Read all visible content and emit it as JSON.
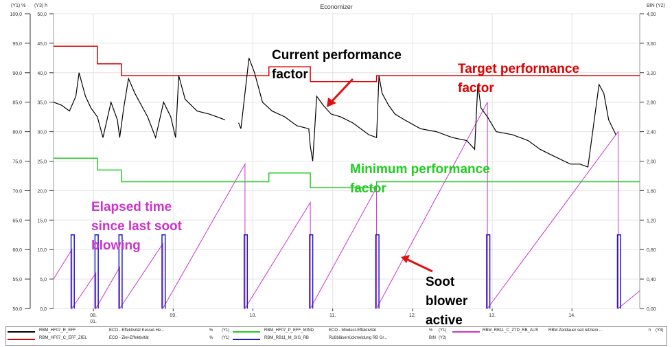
{
  "window": {
    "title": "Economizer"
  },
  "axes": {
    "y1_unit": "(Y1) %",
    "y3_unit": "(Y3) h",
    "y2_unit": "BIN (Y2)",
    "y1_ticks": [
      "100,0",
      "95,0",
      "90,0",
      "85,0",
      "80,0",
      "75,0",
      "70,0",
      "65,0",
      "60,0",
      "55,0",
      "50,0"
    ],
    "y3_ticks": [
      "50,0",
      "45,0",
      "40,0",
      "35,0",
      "30,0",
      "25,0",
      "20,0",
      "15,0",
      "10,0",
      "5,0",
      "0,0"
    ],
    "y2_ticks": [
      "4,00",
      "3,60",
      "3,20",
      "2,80",
      "2,40",
      "2,00",
      "1,60",
      "1,20",
      "0,80",
      "0,40",
      "0,00"
    ],
    "y1_range": [
      50,
      100
    ],
    "x_ticks": [
      {
        "label": "08.",
        "sub": "01.",
        "day": 8
      },
      {
        "label": "09.",
        "sub": "",
        "day": 9
      },
      {
        "label": "10.",
        "sub": "",
        "day": 10
      },
      {
        "label": "11.",
        "sub": "",
        "day": 11
      },
      {
        "label": "12.",
        "sub": "",
        "day": 12
      },
      {
        "label": "13.",
        "sub": "",
        "day": 13
      },
      {
        "label": "14.",
        "sub": "",
        "day": 14
      }
    ],
    "x_range": [
      7.5,
      14.85
    ]
  },
  "annotations": {
    "current": [
      "Current performance",
      "factor"
    ],
    "target": [
      "Target performance",
      "factor"
    ],
    "minimum": [
      "Minimum performance",
      "factor"
    ],
    "elapsed": [
      "Elapsed time",
      "since last soot",
      "blowing"
    ],
    "soot": [
      "Soot",
      "blower",
      "active"
    ]
  },
  "colors": {
    "current": "#000000",
    "target": "#dd0000",
    "minimum": "#22cc22",
    "elapsed": "#cc33cc",
    "soot": "#1a1acc",
    "arrow": "#e01010"
  },
  "legend": [
    {
      "tag": "RBM_HF07_R_EFF",
      "desc": "ECO - Effektivität Kessel-He...",
      "unit": "%",
      "axis": "(Y1)",
      "color": "#000000"
    },
    {
      "tag": "RBM_HF07_P_EFF_MIND",
      "desc": "ECO - Mindest-Effektivität",
      "unit": "%",
      "axis": "(Y1)",
      "color": "#22cc22"
    },
    {
      "tag": "RBM_RB11_C_ZTD_RB_AUS",
      "desc": "RBM Zeitdauer seit letztem ...",
      "unit": "h",
      "axis": "(Y3)",
      "color": "#cc33cc"
    },
    {
      "tag": "RBM_HF07_C_EFF_ZIEL",
      "desc": "ECO - Ziel-Effektivität",
      "unit": "%",
      "axis": "(Y1)",
      "color": "#dd0000"
    },
    {
      "tag": "RBM_RB11_M_SIG_RB",
      "desc": "Rußbläserrückmeldung RB Gr...",
      "unit": "BIN",
      "axis": "(Y2)",
      "color": "#1a1acc"
    }
  ],
  "chart_data": {
    "type": "line",
    "title": "Economizer",
    "x_unit": "day of month (January)",
    "ylim": [
      50,
      100
    ],
    "series": [
      {
        "name": "RBM_HF07_R_EFF",
        "axis": "Y1",
        "type": "line",
        "x": [
          7.5,
          7.6,
          7.7,
          7.78,
          7.82,
          7.86,
          7.9,
          7.97,
          8.05,
          8.12,
          8.22,
          8.3,
          8.33,
          8.38,
          8.44,
          8.52,
          8.6,
          8.68,
          8.78,
          8.88,
          8.97,
          9.03,
          9.07,
          9.15,
          9.3,
          9.45,
          9.55,
          9.65,
          9.78,
          9.82,
          9.85,
          9.95,
          10.02,
          10.12,
          10.24,
          10.4,
          10.55,
          10.7,
          10.72,
          10.75,
          10.8,
          10.88,
          10.98,
          11.1,
          11.25,
          11.45,
          11.55,
          11.58,
          11.62,
          11.7,
          11.78,
          11.9,
          12.1,
          12.3,
          12.5,
          12.68,
          12.78,
          12.82,
          12.86,
          12.94,
          13.05,
          13.25,
          13.45,
          13.6,
          13.75,
          13.98,
          14.1,
          14.2,
          14.34,
          14.4,
          14.46,
          14.55,
          14.62,
          14.68,
          14.74
        ],
        "y": [
          85,
          84.5,
          83.5,
          86,
          90,
          88,
          86,
          84,
          82.5,
          79,
          85,
          82,
          79,
          84,
          89,
          86.5,
          84.5,
          82.5,
          79,
          85,
          82.5,
          79,
          89.5,
          85.5,
          83.5,
          83,
          82.5,
          82,
          null,
          81.5,
          80.5,
          92.5,
          90,
          85,
          83.5,
          82.5,
          81,
          80.5,
          77.5,
          75,
          86,
          84.5,
          83,
          82.5,
          81.5,
          79.5,
          79,
          89.5,
          86.5,
          84.5,
          83,
          82,
          80.5,
          80,
          79,
          78.5,
          77,
          88,
          84,
          82.5,
          80,
          79.5,
          78.5,
          77,
          76,
          74.5,
          74.5,
          74,
          88,
          86.5,
          82,
          79.5,
          null,
          null,
          null
        ]
      },
      {
        "name": "RBM_HF07_C_EFF_ZIEL",
        "axis": "Y1",
        "type": "step",
        "x": [
          7.5,
          8.05,
          8.35,
          9.75,
          10.2,
          10.72,
          11.55,
          14.85
        ],
        "y": [
          94.5,
          91.5,
          89.5,
          89.5,
          91,
          88.5,
          89.5,
          89.5
        ]
      },
      {
        "name": "RBM_HF07_P_EFF_MIND",
        "axis": "Y1",
        "type": "step",
        "x": [
          7.5,
          8.05,
          8.35,
          9.75,
          10.2,
          10.72,
          11.55,
          14.85
        ],
        "y": [
          75.5,
          73.5,
          71.5,
          71.5,
          73,
          70.5,
          71.5,
          71.5
        ]
      },
      {
        "name": "RBM_RB11_C_ZTD_RB_AUS",
        "axis": "Y3",
        "type": "sawtooth",
        "resets": [
          7.73,
          8.03,
          8.33,
          8.87,
          9.9,
          10.72,
          11.55,
          12.94,
          14.58
        ],
        "peaks": [
          10,
          6,
          7,
          11,
          24.5,
          18,
          20.5,
          35,
          30
        ],
        "start": {
          "x": 7.5,
          "y": 5
        },
        "end": {
          "x": 14.85,
          "y": 3
        }
      },
      {
        "name": "RBM_RB11_M_SIG_RB",
        "axis": "Y2",
        "type": "pulses",
        "pulses": [
          [
            7.72,
            7.76
          ],
          [
            8.02,
            8.06
          ],
          [
            8.32,
            8.36
          ],
          [
            8.86,
            8.9
          ],
          [
            9.89,
            9.93
          ],
          [
            10.71,
            10.75
          ],
          [
            11.54,
            11.58
          ],
          [
            12.93,
            12.97
          ],
          [
            14.57,
            14.61
          ]
        ],
        "high": 1.0
      }
    ]
  }
}
